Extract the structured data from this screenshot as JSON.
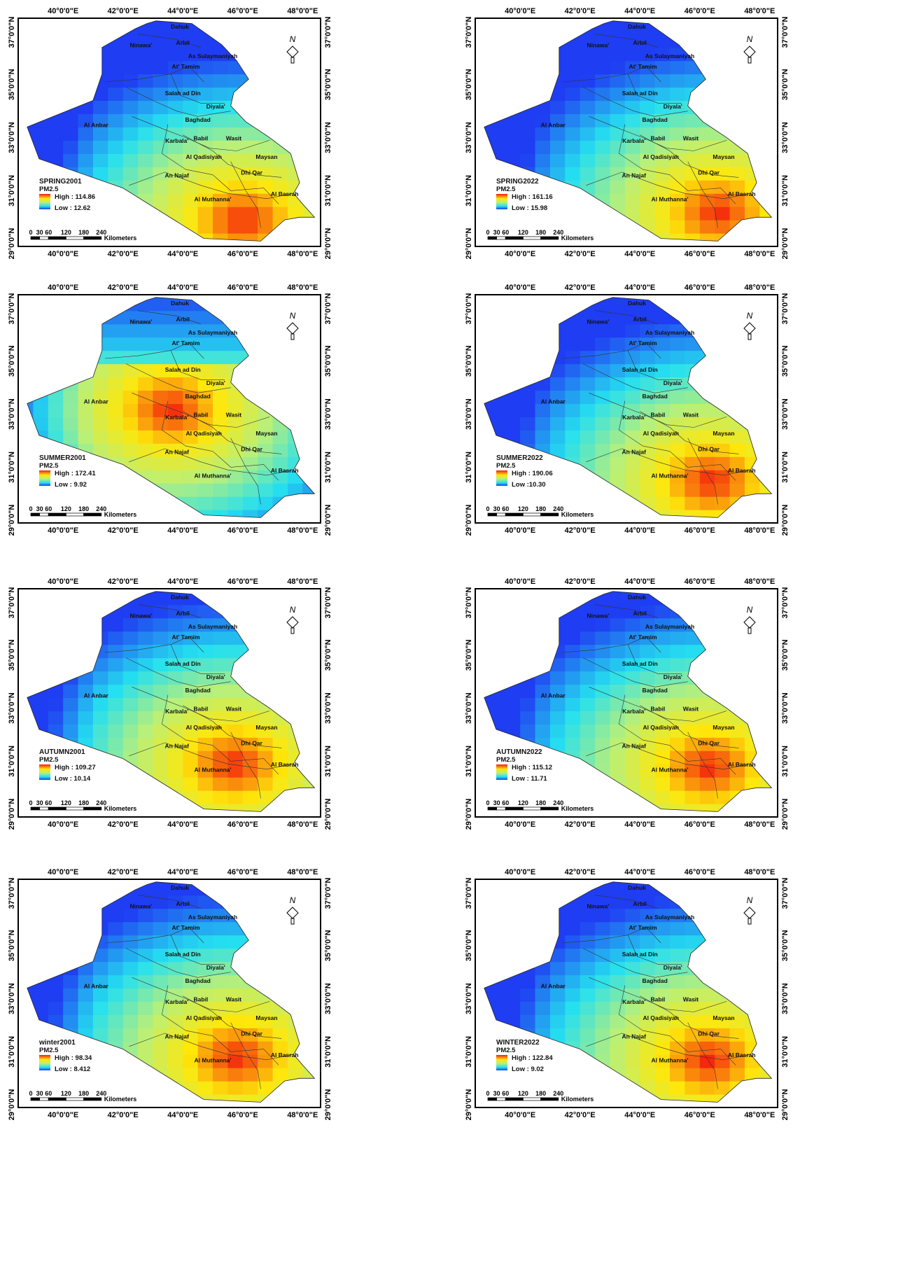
{
  "coords": {
    "lon_labels": [
      "40°0'0\"E",
      "42°0'0\"E",
      "44°0'0\"E",
      "46°0'0\"E",
      "48°0'0\"E"
    ],
    "lat_labels": [
      "37°0'0\"N",
      "35°0'0\"N",
      "33°0'0\"N",
      "31°0'0\"N",
      "29°0'0\"N"
    ]
  },
  "north_label": "N",
  "scale": {
    "ticks": [
      "0",
      "30",
      "60",
      "120",
      "180",
      "240"
    ],
    "unit": "Kilometers"
  },
  "provinces": [
    "Dahuk",
    "Arbil",
    "Ninawa'",
    "As Sulaymaniyah",
    "At' Tamim",
    "Salah ad Din",
    "Diyala'",
    "Baghdad",
    "Al Anbar",
    "Karbala'",
    "Babil",
    "Wasit",
    "Al Qadisiyah",
    "Maysan",
    "An Najaf",
    "Dhi Qar",
    "Al Muthanna'",
    "Al Basrah"
  ],
  "legend_subtitle": "PM2.5",
  "colors": {
    "low": "#1f3df2",
    "mid_low": "#25e0f0",
    "mid": "#b8f07a",
    "mid_high": "#ffe70a",
    "high": "#f41d0d",
    "frame": "#000000"
  },
  "maps": [
    {
      "title": "SPRING2001",
      "high": "High : 114.86",
      "low": "Low : 12.62"
    },
    {
      "title": "SPRING2022",
      "high": "High : 161.16",
      "low": "Low : 15.98"
    },
    {
      "title": "SUMMER2001",
      "high": "High : 172.41",
      "low": "Low : 9.92"
    },
    {
      "title": "SUMMER2022",
      "high": "High : 190.06",
      "low": "Low :10.30"
    },
    {
      "title": "AUTUMN2001",
      "high": "High : 109.27",
      "low": "Low : 10.14"
    },
    {
      "title": "AUTUMN2022",
      "high": "High : 115.12",
      "low": "Low : 11.71"
    },
    {
      "title": "winter2001",
      "high": "High : 98.34",
      "low": "Low : 8.412"
    },
    {
      "title": "WINTER2022",
      "high": "High : 122.84",
      "low": "Low : 9.02"
    }
  ]
}
